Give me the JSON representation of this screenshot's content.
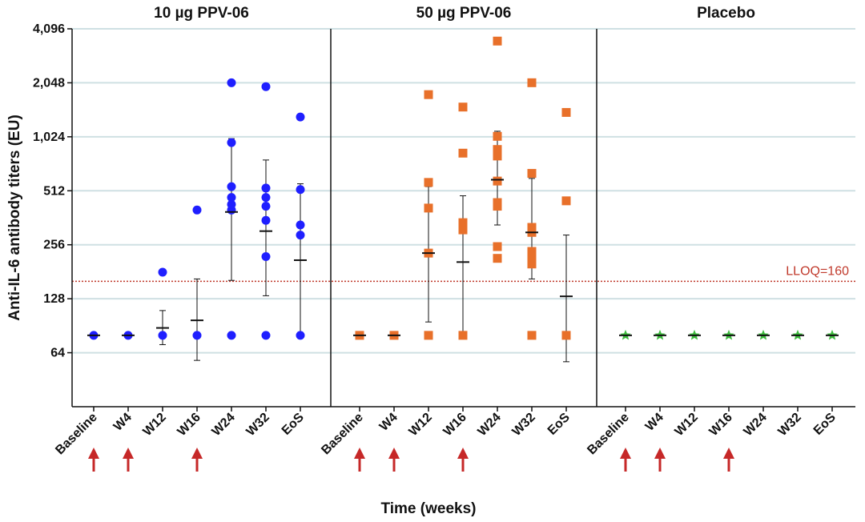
{
  "chart_data": {
    "type": "scatter",
    "xlabel": "Time (weeks)",
    "ylabel": "Anti-IL-6 antibody titers (EU)",
    "yscale": "log2",
    "ylim": [
      32,
      4096
    ],
    "yticks": [
      64,
      128,
      256,
      512,
      1024,
      2048,
      4096
    ],
    "ytick_labels": [
      "64",
      "128",
      "256",
      "512",
      "1,024",
      "2,048",
      "4,096"
    ],
    "grid": true,
    "categories": [
      "Baseline",
      "W4",
      "W12",
      "W16",
      "W24",
      "W32",
      "EoS"
    ],
    "reference_line": {
      "value": 160,
      "label": "LLOQ=160",
      "color": "#c0392b"
    },
    "panels": [
      {
        "title": "10 µg PPV-06",
        "marker": "circle",
        "color": "#1f1fff",
        "vaccination_arrows": [
          "Baseline",
          "W4",
          "W16"
        ],
        "points": {
          "Baseline": [
            80
          ],
          "W4": [
            80
          ],
          "W12": [
            80,
            180
          ],
          "W16": [
            80,
            400
          ],
          "W24": [
            80,
            400,
            430,
            470,
            540,
            950,
            2050
          ],
          "W32": [
            80,
            220,
            350,
            420,
            470,
            530,
            1950
          ],
          "EoS": [
            80,
            290,
            330,
            520,
            1320
          ]
        },
        "means": {
          "Baseline": 80,
          "W4": 80,
          "W12": 88,
          "W16": 97,
          "W24": 390,
          "W32": 305,
          "EoS": 210
        },
        "error_low": {
          "W12": 71,
          "W16": 58,
          "W24": 162,
          "W32": 133,
          "EoS": 80
        },
        "error_high": {
          "W12": 110,
          "W16": 165,
          "W24": 1000,
          "W32": 760,
          "EoS": 560
        }
      },
      {
        "title": "50 µg PPV-06",
        "marker": "square",
        "color": "#e8702a",
        "vaccination_arrows": [
          "Baseline",
          "W4",
          "W16"
        ],
        "points": {
          "Baseline": [
            80
          ],
          "W4": [
            80
          ],
          "W12": [
            80,
            230,
            410,
            570,
            1760
          ],
          "W16": [
            80,
            310,
            340,
            830,
            1500
          ],
          "W24": [
            215,
            250,
            420,
            440,
            580,
            800,
            870,
            1030,
            3500
          ],
          "W32": [
            80,
            200,
            215,
            235,
            300,
            320,
            640,
            2050
          ],
          "EoS": [
            80,
            450,
            1400
          ]
        },
        "means": {
          "Baseline": 80,
          "W4": 80,
          "W12": 230,
          "W16": 205,
          "W24": 590,
          "W32": 300,
          "EoS": 132
        },
        "error_low": {
          "W12": 95,
          "W16": 80,
          "W24": 330,
          "W32": 165,
          "EoS": 57
        },
        "error_high": {
          "W12": 540,
          "W16": 480,
          "W24": 1100,
          "W32": 600,
          "EoS": 290
        }
      },
      {
        "title": "Placebo",
        "marker": "star",
        "color": "#3dbb3d",
        "vaccination_arrows": [
          "Baseline",
          "W4",
          "W16"
        ],
        "points": {
          "Baseline": [
            80
          ],
          "W4": [
            80
          ],
          "W12": [
            80
          ],
          "W16": [
            80
          ],
          "W24": [
            80
          ],
          "W32": [
            80
          ],
          "EoS": [
            80
          ]
        },
        "means": {
          "Baseline": 80,
          "W4": 80,
          "W12": 80,
          "W16": 80,
          "W24": 80,
          "W32": 80,
          "EoS": 80
        },
        "error_low": {},
        "error_high": {}
      }
    ]
  },
  "colors": {
    "grid": "#cfe0e3",
    "axis": "#111111",
    "arrow": "#c62828"
  }
}
